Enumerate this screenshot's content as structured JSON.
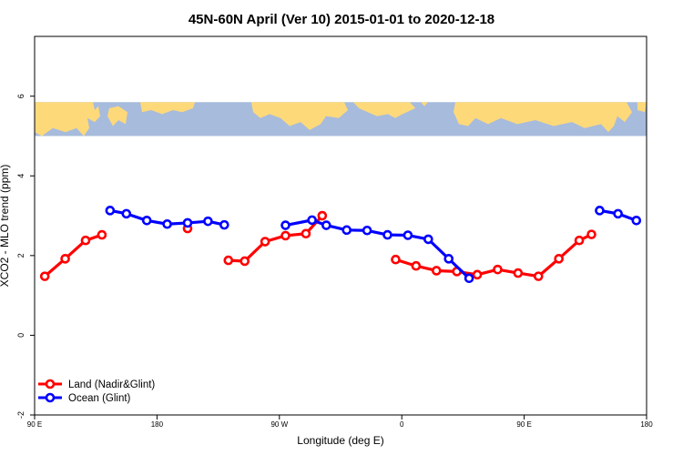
{
  "chart_data": {
    "type": "line",
    "title": "45N-60N April (Ver 10)   2015-01-01 to 2020-12-18",
    "xlabel": "Longitude (deg E)",
    "ylabel": "XCO2 - MLO trend (ppm)",
    "xlim": [
      -90,
      180
    ],
    "ylim": [
      -2.0,
      7.5
    ],
    "x_ticks": [
      {
        "value": -90,
        "label": "90 E"
      },
      {
        "value": -36,
        "label": "180"
      },
      {
        "value": 18,
        "label": "90 W"
      },
      {
        "value": 72,
        "label": "0"
      },
      {
        "value": 126,
        "label": "90 E"
      },
      {
        "value": 180,
        "label": "180"
      }
    ],
    "y_ticks": [
      {
        "value": -2,
        "label": "-2"
      },
      {
        "value": 0,
        "label": "0"
      },
      {
        "value": 2,
        "label": "2"
      },
      {
        "value": 4,
        "label": "4"
      },
      {
        "value": 6,
        "label": "6"
      }
    ],
    "map_band": {
      "y_from": 5.0,
      "y_to": 5.85,
      "ocean_color": "#a7bbdc",
      "land_color": "#fed97a"
    },
    "grid": false,
    "legend_position": "bottom-left",
    "series": [
      {
        "name": "Land (Nadir&Glint)",
        "color": "#ff0000",
        "segments": [
          [
            [
              -85.5,
              1.48
            ],
            [
              -76.5,
              1.92
            ],
            [
              -67.5,
              2.38
            ],
            [
              -60.3,
              2.52
            ]
          ],
          [
            [
              -22.5,
              2.68
            ]
          ],
          [
            [
              -4.5,
              1.88
            ],
            [
              2.7,
              1.86
            ],
            [
              11.7,
              2.35
            ],
            [
              20.7,
              2.5
            ],
            [
              29.7,
              2.55
            ],
            [
              36.9,
              3.0
            ]
          ],
          [
            [
              69.3,
              1.9
            ],
            [
              78.3,
              1.74
            ],
            [
              87.3,
              1.62
            ],
            [
              96.3,
              1.6
            ],
            [
              105.3,
              1.52
            ],
            [
              114.3,
              1.65
            ],
            [
              123.3,
              1.56
            ],
            [
              132.3,
              1.48
            ],
            [
              141.3,
              1.92
            ],
            [
              150.3,
              2.38
            ],
            [
              155.7,
              2.53
            ]
          ]
        ]
      },
      {
        "name": "Ocean (Glint)",
        "color": "#0000ff",
        "segments": [
          [
            [
              -56.7,
              3.13
            ],
            [
              -49.5,
              3.05
            ],
            [
              -40.5,
              2.88
            ],
            [
              -31.5,
              2.79
            ],
            [
              -22.5,
              2.82
            ],
            [
              -13.5,
              2.86
            ],
            [
              -6.3,
              2.77
            ]
          ],
          [
            [
              20.7,
              2.76
            ],
            [
              32.4,
              2.89
            ],
            [
              38.7,
              2.76
            ],
            [
              47.7,
              2.64
            ],
            [
              56.7,
              2.63
            ],
            [
              65.7,
              2.52
            ],
            [
              74.7,
              2.51
            ],
            [
              83.7,
              2.41
            ],
            [
              92.7,
              1.92
            ],
            [
              101.7,
              1.43
            ]
          ],
          [
            [
              159.3,
              3.13
            ],
            [
              167.4,
              3.05
            ],
            [
              175.5,
              2.88
            ]
          ]
        ]
      }
    ]
  }
}
